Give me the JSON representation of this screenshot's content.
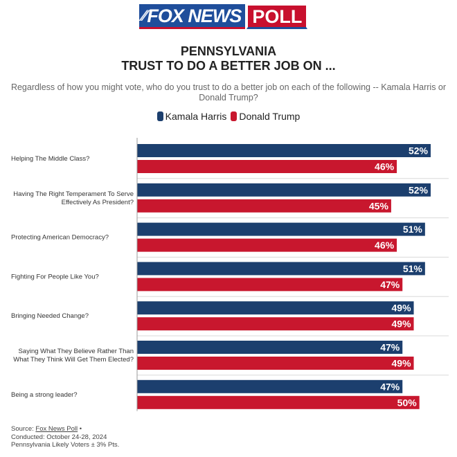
{
  "logo": {
    "left_text": "FOX NEWS",
    "right_text": "POLL"
  },
  "header": {
    "title_line1": "PENNSYLVANIA",
    "title_line2": "TRUST TO DO A BETTER JOB ON ...",
    "subtitle": "Regardless of how you might vote, who do you trust to do a better job on each of the following -- Kamala Harris or Donald Trump?"
  },
  "colors": {
    "harris": "#1c3f6e",
    "trump": "#c8172e",
    "separator": "#d8d8d8",
    "axis": "#999999"
  },
  "chart_data": {
    "type": "bar",
    "orientation": "horizontal",
    "title": "PENNSYLVANIA TRUST TO DO A BETTER JOB ON ...",
    "subtitle": "Regardless of how you might vote, who do you trust to do a better job on each of the following -- Kamala Harris or Donald Trump?",
    "xlabel": "",
    "ylabel": "",
    "legend_position": "top-center",
    "grid": false,
    "xlim": [
      0,
      52
    ],
    "categories": [
      [
        "Helping The Middle Class?"
      ],
      [
        "Having The Right Temperament To Serve",
        "Effectively As President?"
      ],
      [
        "Protecting American Democracy?"
      ],
      [
        "Fighting For People Like You?"
      ],
      [
        "Bringing Needed Change?"
      ],
      [
        "Saying What They Believe Rather Than",
        "What They Think Will Get Them Elected?"
      ],
      [
        "Being a strong leader?"
      ]
    ],
    "series": [
      {
        "name": "Kamala Harris",
        "values": [
          52,
          52,
          51,
          51,
          49,
          47,
          47
        ]
      },
      {
        "name": "Donald Trump",
        "values": [
          46,
          45,
          46,
          47,
          49,
          49,
          50
        ]
      }
    ],
    "value_suffix": "%"
  },
  "footer": {
    "source_prefix": "Source: ",
    "source_link": "Fox News Poll",
    "source_suffix": " •",
    "conducted": "Conducted: October 24-28, 2024",
    "sample": "Pennsylvania Likely Voters ± 3% Pts."
  }
}
